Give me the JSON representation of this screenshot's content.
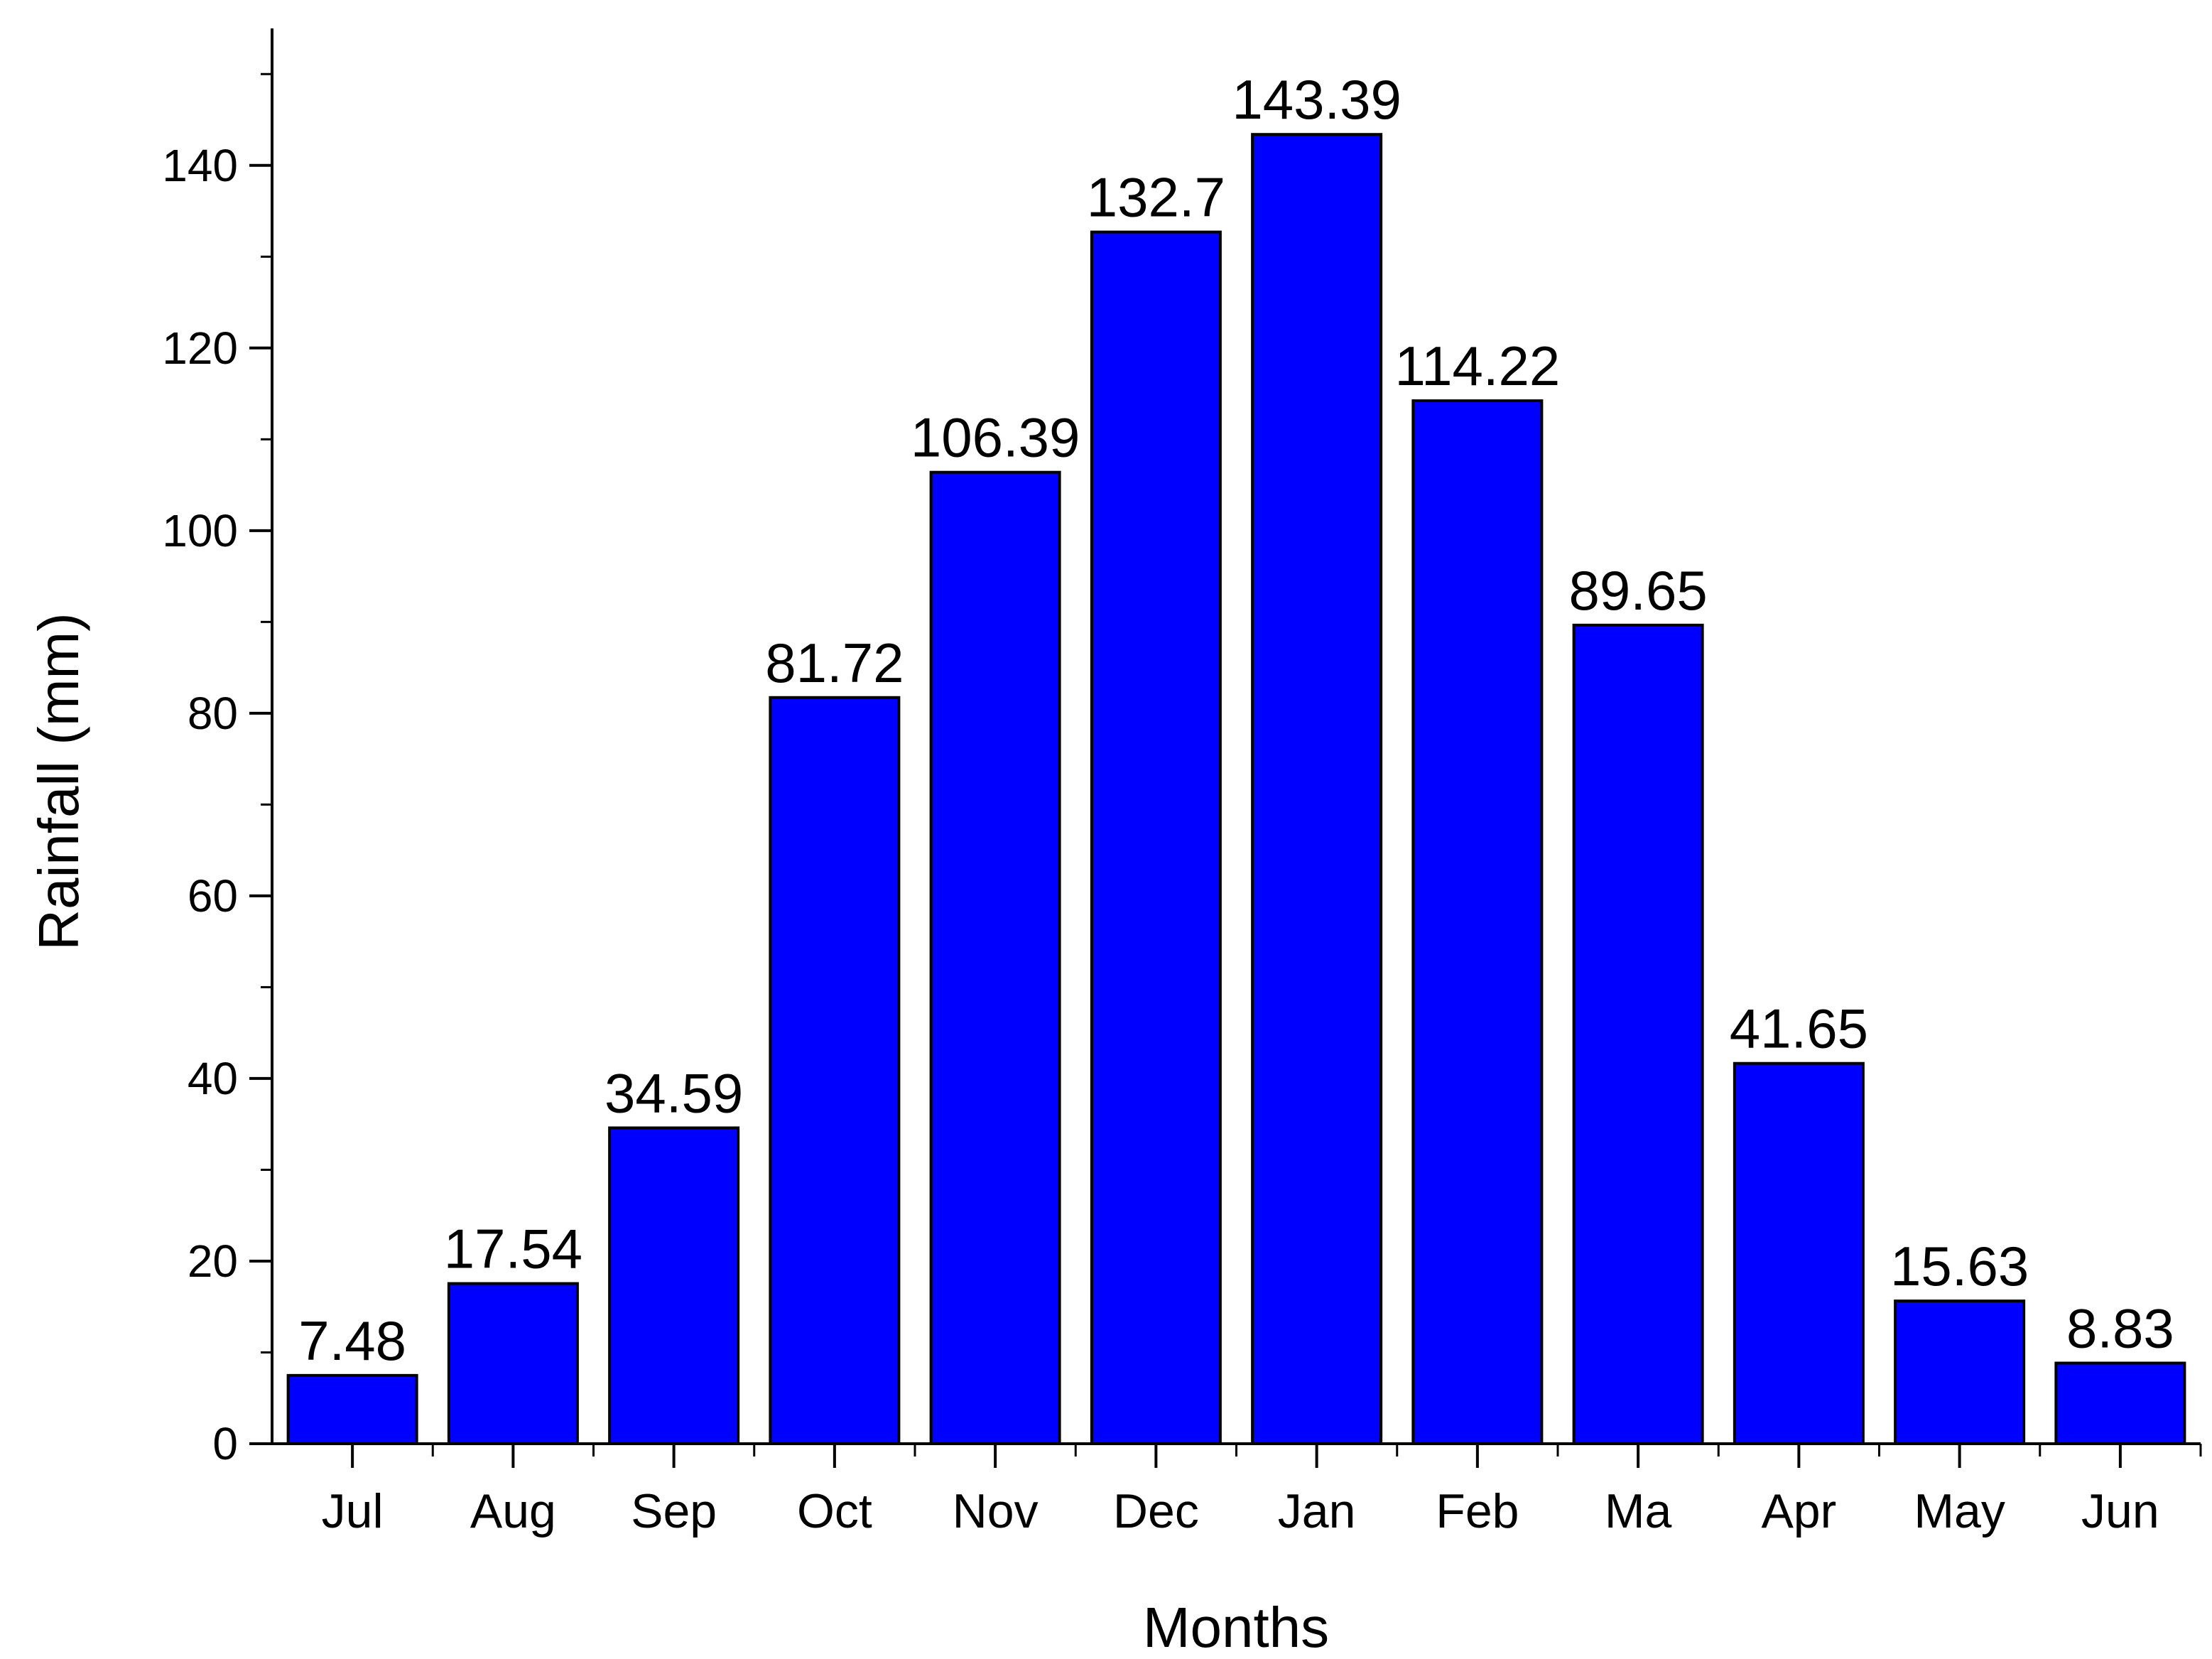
{
  "chart_data": {
    "type": "bar",
    "xlabel": "Months",
    "ylabel": "Rainfall (mm)",
    "ylim": [
      0,
      155
    ],
    "yticks": [
      0,
      20,
      40,
      60,
      80,
      100,
      120,
      140
    ],
    "categories": [
      "Jul",
      "Aug",
      "Sep",
      "Oct",
      "Nov",
      "Dec",
      "Jan",
      "Feb",
      "Ma",
      "Apr",
      "May",
      "Jun"
    ],
    "values": [
      7.48,
      17.54,
      34.59,
      81.72,
      106.39,
      132.7,
      143.39,
      114.22,
      89.65,
      41.65,
      15.63,
      8.83
    ],
    "value_labels": [
      "7.48",
      "17.54",
      "34.59",
      "81.72",
      "106.39",
      "132.7",
      "143.39",
      "114.22",
      "89.65",
      "41.65",
      "15.63",
      "8.83"
    ],
    "bar_color": "#0000FF",
    "bar_edge_color": "#000000",
    "grid": false,
    "legend": "none"
  }
}
